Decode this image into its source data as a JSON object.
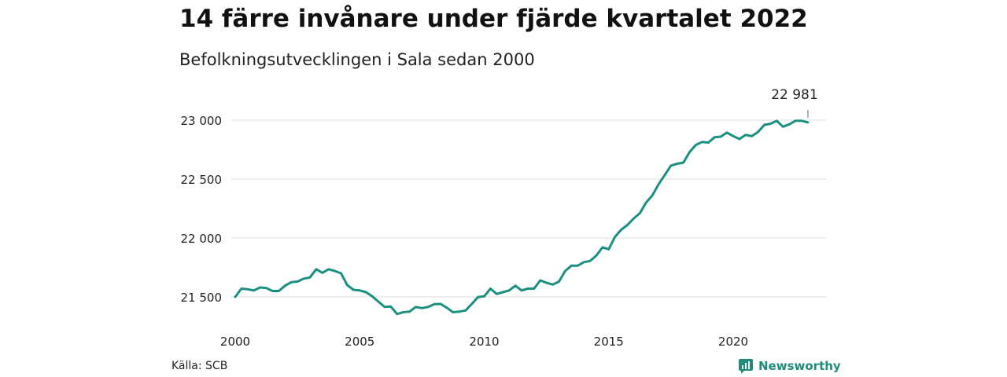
{
  "header": {
    "title": "14 färre invånare under fjärde kvartalet 2022",
    "subtitle": "Befolkningsutvecklingen i Sala sedan 2000"
  },
  "footer": {
    "source": "Källa: SCB",
    "brand": "Newsworthy"
  },
  "colors": {
    "line": "#1a9080",
    "grid": "#dddddd",
    "brand": "#1f8c7a"
  },
  "chart_data": {
    "type": "line",
    "title": "14 färre invånare under fjärde kvartalet 2022",
    "subtitle": "Befolkningsutvecklingen i Sala sedan 2000",
    "xlabel": "",
    "ylabel": "",
    "xlim": [
      2000,
      2023
    ],
    "ylim": [
      21400,
      23100
    ],
    "x_ticks": [
      2000,
      2005,
      2010,
      2015,
      2020
    ],
    "x_tick_labels": [
      "2000",
      "2005",
      "2010",
      "2015",
      "2020"
    ],
    "y_ticks": [
      21500,
      22000,
      22500,
      23000
    ],
    "y_tick_labels": [
      "21 500",
      "22 000",
      "22 500",
      "23 000"
    ],
    "grid": "horizontal",
    "legend": "none",
    "end_label": "22 981",
    "series": [
      {
        "x": [
          2000.0,
          2000.25,
          2000.5,
          2000.75,
          2001.0,
          2001.25,
          2001.5,
          2001.75,
          2002.0,
          2002.25,
          2002.5,
          2002.75,
          2003.0,
          2003.25,
          2003.5,
          2003.75,
          2004.0,
          2004.25,
          2004.5,
          2004.75,
          2005.0,
          2005.25,
          2005.5,
          2005.75,
          2006.0,
          2006.25,
          2006.5,
          2006.75,
          2007.0,
          2007.25,
          2007.5,
          2007.75,
          2008.0,
          2008.25,
          2008.5,
          2008.75,
          2009.0,
          2009.25,
          2009.5,
          2009.75,
          2010.0,
          2010.25,
          2010.5,
          2010.75,
          2011.0,
          2011.25,
          2011.5,
          2011.75,
          2012.0,
          2012.25,
          2012.5,
          2012.75,
          2013.0,
          2013.25,
          2013.5,
          2013.75,
          2014.0,
          2014.25,
          2014.5,
          2014.75,
          2015.0,
          2015.25,
          2015.5,
          2015.75,
          2016.0,
          2016.25,
          2016.5,
          2016.75,
          2017.0,
          2017.25,
          2017.5,
          2017.75,
          2018.0,
          2018.25,
          2018.5,
          2018.75,
          2019.0,
          2019.25,
          2019.5,
          2019.75,
          2020.0,
          2020.25,
          2020.5,
          2020.75,
          2021.0,
          2021.25,
          2021.5,
          2021.75,
          2022.0,
          2022.25,
          2022.5,
          2022.75,
          2023.0
        ],
        "values": [
          21500,
          21570,
          21565,
          21555,
          21580,
          21575,
          21550,
          21550,
          21595,
          21625,
          21630,
          21655,
          21665,
          21735,
          21705,
          21735,
          21720,
          21700,
          21600,
          21560,
          21555,
          21540,
          21505,
          21460,
          21415,
          21418,
          21355,
          21370,
          21375,
          21415,
          21405,
          21415,
          21438,
          21440,
          21408,
          21370,
          21375,
          21385,
          21440,
          21498,
          21505,
          21570,
          21525,
          21540,
          21555,
          21595,
          21555,
          21570,
          21570,
          21640,
          21620,
          21605,
          21630,
          21720,
          21765,
          21765,
          21795,
          21805,
          21850,
          21920,
          21905,
          22010,
          22070,
          22110,
          22165,
          22210,
          22300,
          22360,
          22455,
          22535,
          22615,
          22630,
          22640,
          22730,
          22790,
          22815,
          22810,
          22855,
          22860,
          22895,
          22865,
          22840,
          22875,
          22865,
          22900,
          22960,
          22970,
          22995,
          22945,
          22965,
          22995,
          22995,
          22981
        ]
      }
    ]
  }
}
